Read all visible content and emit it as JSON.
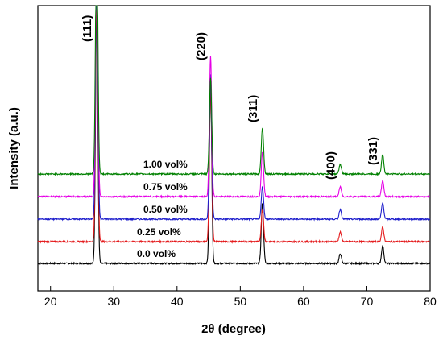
{
  "chart_data": {
    "type": "line",
    "title": "",
    "xlabel": "2θ (degree)",
    "ylabel": "Intensity (a.u.)",
    "xlim": [
      18,
      80
    ],
    "xticks": [
      20,
      30,
      40,
      50,
      60,
      70,
      80
    ],
    "y_ticks_shown": false,
    "grid": false,
    "legend": "inline labels above each trace",
    "peaks": [
      {
        "label": "(111)",
        "x": 27.3
      },
      {
        "label": "(220)",
        "x": 45.3
      },
      {
        "label": "(311)",
        "x": 53.5
      },
      {
        "label": "(400)",
        "x": 65.8
      },
      {
        "label": "(331)",
        "x": 72.5
      }
    ],
    "series": [
      {
        "name": "0.0 vol%",
        "color": "#000000",
        "peak_heights": {
          "27.3": 320,
          "45.3": 220,
          "53.5": 75,
          "65.8": 12,
          "72.5": 22
        }
      },
      {
        "name": "0.25 vol%",
        "color": "#e41a1c",
        "peak_heights": {
          "27.3": 320,
          "45.3": 200,
          "53.5": 40,
          "65.8": 12,
          "72.5": 18
        }
      },
      {
        "name": "0.50 vol%",
        "color": "#1f1fcc",
        "peak_heights": {
          "27.3": 320,
          "45.3": 180,
          "53.5": 40,
          "65.8": 12,
          "72.5": 20
        }
      },
      {
        "name": "0.75 vol%",
        "color": "#e600e6",
        "peak_heights": {
          "27.3": 320,
          "45.3": 175,
          "53.5": 55,
          "65.8": 12,
          "72.5": 20
        }
      },
      {
        "name": "1.00 vol%",
        "color": "#008000",
        "peak_heights": {
          "27.3": 320,
          "45.3": 120,
          "53.5": 58,
          "65.8": 12,
          "72.5": 24
        }
      }
    ]
  }
}
